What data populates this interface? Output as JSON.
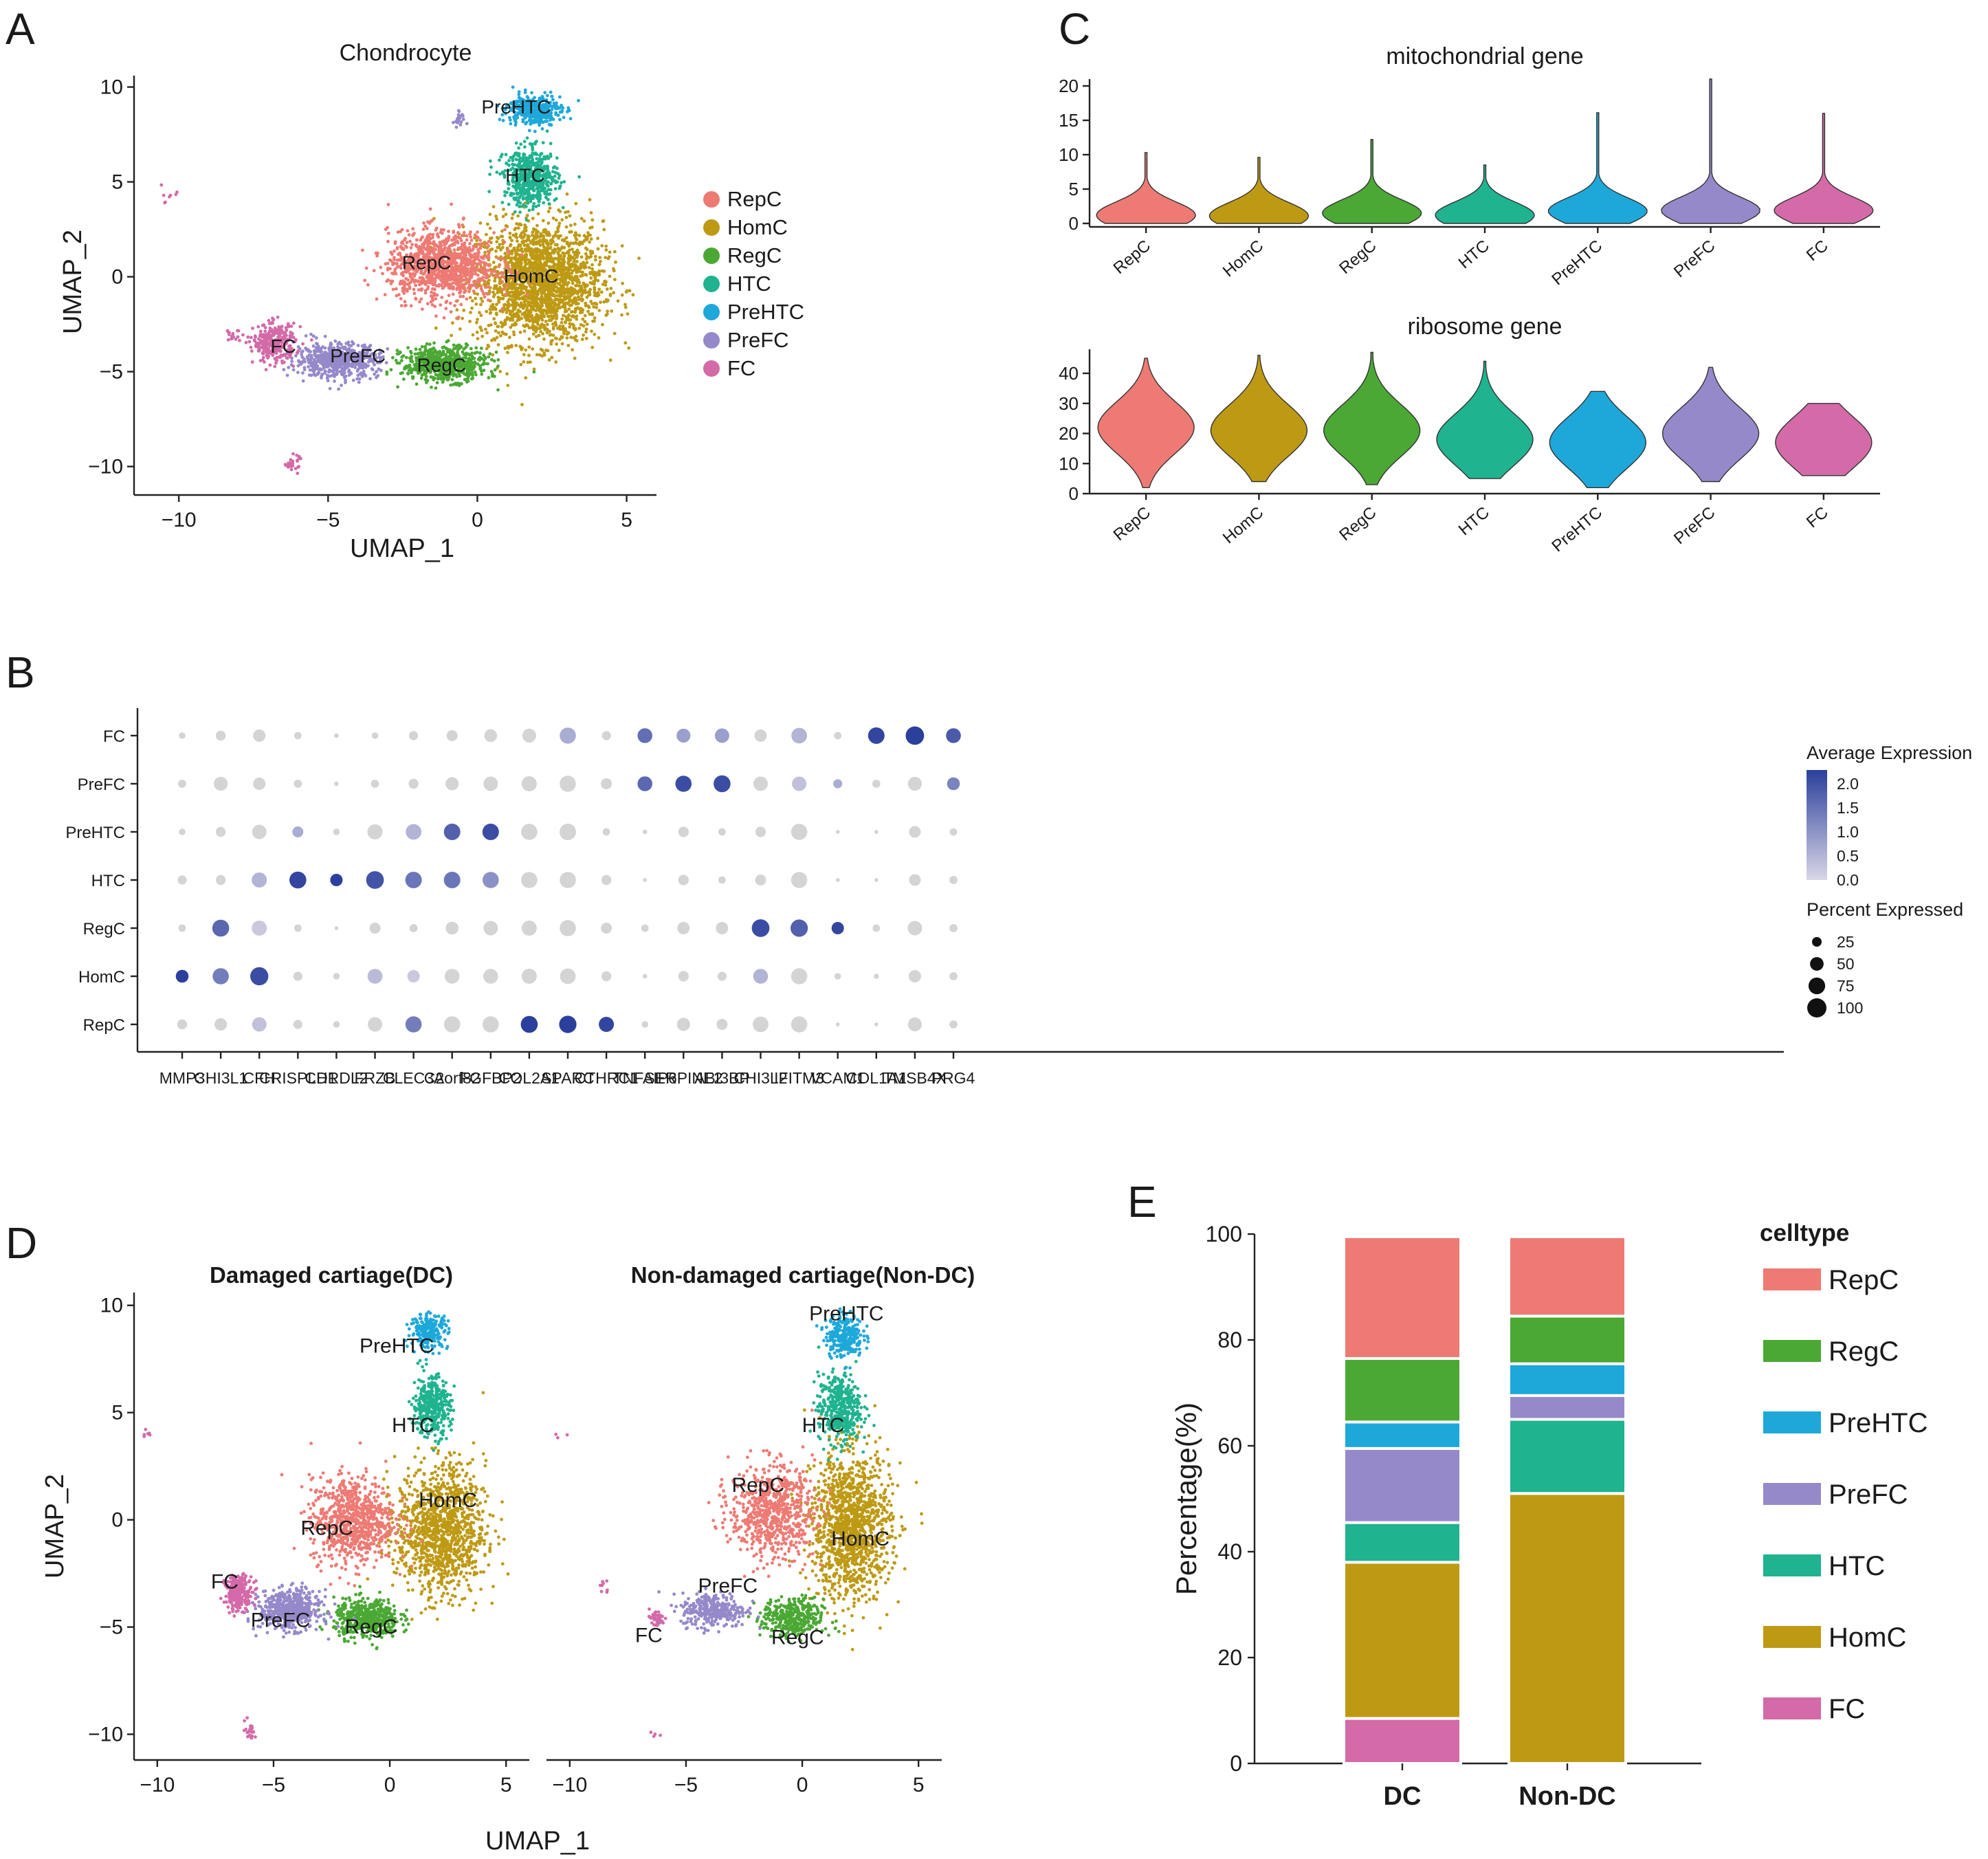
{
  "panels": {
    "A": "A",
    "B": "B",
    "C": "C",
    "D": "D",
    "E": "E"
  },
  "colors": {
    "RepC": "#EE7A74",
    "HomC": "#BE9A14",
    "RegC": "#4BA834",
    "HTC": "#1FB38F",
    "PreHTC": "#1EA8DA",
    "PreFC": "#9689CA",
    "FC": "#D46AA8"
  },
  "chart_data": [
    {
      "id": "A",
      "type": "scatter",
      "title": "Chondrocyte",
      "xlabel": "UMAP_1",
      "ylabel": "UMAP_2",
      "xticks": [
        -10,
        -5,
        0,
        5
      ],
      "yticks": [
        -10,
        -5,
        0,
        5,
        10
      ],
      "xlim": [
        -11.5,
        6
      ],
      "ylim": [
        -11.5,
        10.6
      ],
      "legend": [
        "RepC",
        "HomC",
        "RegC",
        "HTC",
        "PreHTC",
        "PreFC",
        "FC"
      ],
      "clusters": [
        {
          "name": "HomC",
          "center": [
            2.1,
            -0.3
          ],
          "spread": [
            2.1,
            3.2
          ],
          "n": 2100
        },
        {
          "name": "RepC",
          "center": [
            -1.2,
            0.6
          ],
          "spread": [
            1.8,
            1.8
          ],
          "n": 1100
        },
        {
          "name": "RegC",
          "center": [
            -1.1,
            -4.6
          ],
          "spread": [
            1.4,
            0.9
          ],
          "n": 650
        },
        {
          "name": "PreFC",
          "center": [
            -4.7,
            -4.4
          ],
          "spread": [
            1.4,
            0.9
          ],
          "n": 600
        },
        {
          "name": "FC",
          "center": [
            -6.8,
            -3.5
          ],
          "spread": [
            0.7,
            1.0
          ],
          "n": 300
        },
        {
          "name": "HTC",
          "center": [
            1.8,
            5.2
          ],
          "spread": [
            0.9,
            1.5
          ],
          "n": 550
        },
        {
          "name": "PreHTC",
          "center": [
            1.9,
            8.8
          ],
          "spread": [
            0.9,
            0.8
          ],
          "n": 360
        }
      ],
      "labels": [
        {
          "text": "PreHTC",
          "x": 1.3,
          "y": 8.6
        },
        {
          "text": "HTC",
          "x": 1.6,
          "y": 5.0
        },
        {
          "text": "RepC",
          "x": -1.7,
          "y": 0.4
        },
        {
          "text": "HomC",
          "x": 1.8,
          "y": -0.3
        },
        {
          "text": "FC",
          "x": -6.5,
          "y": -4.0
        },
        {
          "text": "PreFC",
          "x": -4.0,
          "y": -4.5
        },
        {
          "text": "RegC",
          "x": -1.2,
          "y": -5.0
        }
      ]
    },
    {
      "id": "C1",
      "type": "violin",
      "title": "mitochondrial gene",
      "categories": [
        "RepC",
        "HomC",
        "RegC",
        "HTC",
        "PreHTC",
        "PreFC",
        "FC"
      ],
      "yticks": [
        0,
        5,
        10,
        15,
        20
      ],
      "ylim": [
        -0.5,
        21
      ],
      "medians": [
        1.2,
        1.1,
        1.5,
        1.2,
        1.8,
        1.9,
        1.9
      ],
      "max": [
        10.3,
        9.6,
        12.2,
        8.5,
        16.1,
        21.0,
        16.0
      ]
    },
    {
      "id": "C2",
      "type": "violin",
      "title": "ribosome gene",
      "categories": [
        "RepC",
        "HomC",
        "RegC",
        "HTC",
        "PreHTC",
        "PreFC",
        "FC"
      ],
      "yticks": [
        0,
        10,
        20,
        30,
        40
      ],
      "ylim": [
        0,
        48
      ],
      "medians": [
        22,
        21,
        21,
        18,
        17,
        20,
        17
      ],
      "min": [
        2,
        4,
        3,
        5,
        2,
        4,
        6
      ],
      "max": [
        45,
        46,
        47,
        44,
        34,
        42,
        30
      ]
    },
    {
      "id": "B",
      "type": "dotplot",
      "genes": [
        "MMP3",
        "CHI3L1",
        "CFH",
        "CRISPLD1",
        "CHRDL2",
        "FRZB",
        "CLEC3A",
        "C2orf82",
        "FGFBP2",
        "COL2A1",
        "SPARC",
        "CTHRC1",
        "TNFAIP6",
        "SERPINE2",
        "ABI3BP",
        "CHI3L2",
        "IFITM3",
        "VCAM1",
        "COL1A1",
        "TMSB4X",
        "PRG4"
      ],
      "celltypes": [
        "FC",
        "PreFC",
        "PreHTC",
        "HTC",
        "RegC",
        "HomC",
        "RepC"
      ],
      "expression": [
        [
          0,
          0,
          0,
          0,
          0,
          0,
          0,
          0,
          0,
          0,
          0.6,
          0,
          1.5,
          0.8,
          0.8,
          0,
          0.5,
          0,
          2.1,
          2.2,
          1.8
        ],
        [
          0,
          0,
          0,
          0,
          0,
          0,
          0,
          0,
          0,
          0,
          0,
          0,
          1.6,
          2.0,
          2.0,
          0,
          0.3,
          0.6,
          0,
          0,
          1.2
        ],
        [
          0,
          0,
          0,
          0.6,
          0,
          0,
          0.5,
          1.7,
          2.0,
          0,
          0,
          0,
          0,
          0,
          0,
          0,
          0,
          0,
          0,
          0,
          0
        ],
        [
          0,
          0,
          0.5,
          2.1,
          2.2,
          1.9,
          1.4,
          1.4,
          1.0,
          0,
          0,
          0,
          0,
          0,
          0,
          0,
          0,
          0,
          0,
          0,
          0
        ],
        [
          0,
          1.6,
          0.2,
          0,
          0,
          0,
          0,
          0,
          0,
          0,
          0,
          0,
          0,
          0,
          0,
          2.0,
          1.7,
          2.1,
          0,
          0,
          0
        ],
        [
          2.2,
          1.3,
          2.0,
          0,
          0,
          0.4,
          0.2,
          0,
          0,
          0,
          0,
          0,
          0,
          0,
          0,
          0.5,
          0,
          0,
          0,
          0,
          0
        ],
        [
          0,
          0,
          0.3,
          0,
          0,
          0,
          1.3,
          0,
          0,
          2.3,
          2.2,
          2.1,
          0,
          0,
          0,
          0,
          0,
          0,
          0,
          0,
          0
        ]
      ],
      "percent": [
        [
          8,
          18,
          28,
          10,
          4,
          8,
          15,
          22,
          30,
          35,
          48,
          15,
          40,
          35,
          38,
          28,
          45,
          10,
          50,
          62,
          40
        ],
        [
          12,
          35,
          28,
          12,
          4,
          12,
          18,
          32,
          38,
          42,
          48,
          22,
          40,
          48,
          52,
          38,
          38,
          15,
          12,
          35,
          30
        ],
        [
          8,
          18,
          38,
          22,
          8,
          42,
          45,
          50,
          50,
          48,
          50,
          10,
          4,
          20,
          10,
          20,
          48,
          3,
          3,
          25,
          10
        ],
        [
          15,
          18,
          42,
          52,
          28,
          58,
          50,
          50,
          48,
          48,
          48,
          18,
          3,
          20,
          10,
          22,
          48,
          3,
          3,
          25,
          12
        ],
        [
          10,
          52,
          42,
          10,
          3,
          22,
          12,
          30,
          38,
          42,
          48,
          22,
          10,
          28,
          28,
          58,
          55,
          28,
          10,
          38,
          12
        ],
        [
          30,
          48,
          60,
          15,
          8,
          40,
          28,
          40,
          40,
          42,
          45,
          18,
          4,
          20,
          15,
          40,
          48,
          8,
          5,
          28,
          12
        ],
        [
          18,
          28,
          38,
          15,
          8,
          38,
          48,
          48,
          48,
          52,
          55,
          42,
          8,
          32,
          22,
          45,
          48,
          3,
          3,
          35,
          12
        ]
      ],
      "legend_expression": {
        "title": "Average Expression",
        "ticks": [
          "2.0",
          "1.5",
          "1.0",
          "0.5",
          "0.0"
        ]
      },
      "legend_percent": {
        "title": "Percent Expressed",
        "ticks": [
          "25",
          "50",
          "75",
          "100"
        ]
      }
    },
    {
      "id": "D",
      "type": "scatter",
      "subplots": [
        {
          "title": "Damaged cartiage(DC)",
          "labels": [
            {
              "text": "PreHTC",
              "x": 0.3,
              "y": 7.8
            },
            {
              "text": "HTC",
              "x": 1.0,
              "y": 4.1
            },
            {
              "text": "RepC",
              "x": -2.7,
              "y": -0.7
            },
            {
              "text": "HomC",
              "x": 2.5,
              "y": 0.6
            },
            {
              "text": "FC",
              "x": -7.1,
              "y": -3.2
            },
            {
              "text": "PreFC",
              "x": -4.7,
              "y": -5.0
            },
            {
              "text": "RegC",
              "x": -0.8,
              "y": -5.3
            }
          ]
        },
        {
          "title": "Non-damaged cartiage(Non-DC)",
          "labels": [
            {
              "text": "PreHTC",
              "x": 1.9,
              "y": 9.3
            },
            {
              "text": "HTC",
              "x": 0.9,
              "y": 4.1
            },
            {
              "text": "RepC",
              "x": -1.9,
              "y": 1.3
            },
            {
              "text": "HomC",
              "x": 2.5,
              "y": -1.2
            },
            {
              "text": "FC",
              "x": -6.6,
              "y": -5.7
            },
            {
              "text": "PreFC",
              "x": -3.2,
              "y": -3.4
            },
            {
              "text": "RegC",
              "x": -0.2,
              "y": -5.8
            }
          ]
        }
      ],
      "xlabel": "UMAP_1",
      "ylabel": "UMAP_2",
      "xticks": [
        -10,
        -5,
        0,
        5
      ],
      "yticks": [
        -10,
        -5,
        0,
        5,
        10
      ],
      "xlim": [
        -11,
        6
      ],
      "ylim": [
        -11.2,
        10.6
      ]
    },
    {
      "id": "E",
      "type": "bar",
      "stacked": true,
      "categories": [
        "DC",
        "Non-DC"
      ],
      "ylabel": "Percentage(%)",
      "yticks": [
        0,
        20,
        40,
        60,
        80,
        100
      ],
      "ylim": [
        0,
        100
      ],
      "legend_title": "celltype",
      "legend": [
        "RepC",
        "RegC",
        "PreHTC",
        "PreFC",
        "HTC",
        "HomC",
        "FC"
      ],
      "stack_order": [
        "FC",
        "HomC",
        "HTC",
        "PreFC",
        "PreHTC",
        "RegC",
        "RepC"
      ],
      "series": [
        {
          "name": "FC",
          "values": [
            8.5,
            0
          ]
        },
        {
          "name": "HomC",
          "values": [
            29.5,
            51
          ]
        },
        {
          "name": "HTC",
          "values": [
            7.5,
            14
          ]
        },
        {
          "name": "PreFC",
          "values": [
            14,
            4.5
          ]
        },
        {
          "name": "PreHTC",
          "values": [
            5,
            6
          ]
        },
        {
          "name": "RegC",
          "values": [
            12,
            9
          ]
        },
        {
          "name": "RepC",
          "values": [
            23,
            15
          ]
        }
      ]
    }
  ]
}
